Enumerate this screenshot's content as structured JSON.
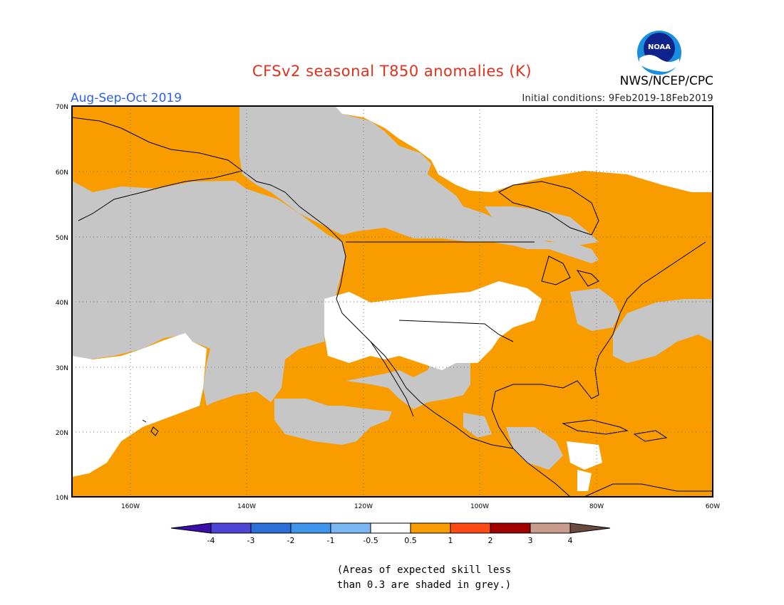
{
  "header": {
    "title": "CFSv2 seasonal T850 anomalies (K)",
    "season": "Aug-Sep-Oct 2019",
    "initial_conditions": "Initial conditions: 9Feb2019-18Feb2019",
    "agency": "NWS/NCEP/CPC",
    "logo_icon": "noaa-logo-icon"
  },
  "map": {
    "lat_labels": [
      "70N",
      "60N",
      "50N",
      "40N",
      "30N",
      "20N",
      "10N"
    ],
    "lon_labels": [
      "160W",
      "140W",
      "120W",
      "100W",
      "80W",
      "60W"
    ],
    "region": "North America and eastern Pacific",
    "lon_range": [
      -170,
      -60
    ],
    "lat_range": [
      10,
      70
    ],
    "land_outline_color": "#000000",
    "grid": "dotted"
  },
  "colorbar": {
    "labels": [
      "-4",
      "-3",
      "-2",
      "-1",
      "-0.5",
      "0.5",
      "1",
      "2",
      "3",
      "4"
    ],
    "colors": [
      "#3a0fa8",
      "#4d45d4",
      "#2c6fd8",
      "#3f94ec",
      "#7ab8f4",
      "#ffffff",
      "#f89c00",
      "#ff4a14",
      "#a00000",
      "#c89c8c",
      "#6b4a40"
    ]
  },
  "legend_note": {
    "line1": "(Areas of expected skill less",
    "line2": "than 0.3 are shaded in grey.)"
  },
  "colors": {
    "anomaly_positive": "#f89c00",
    "low_skill_grey": "#c6c6c6",
    "neutral_white": "#ffffff",
    "title_red": "#e0301e",
    "season_blue": "#2a5ff0"
  }
}
